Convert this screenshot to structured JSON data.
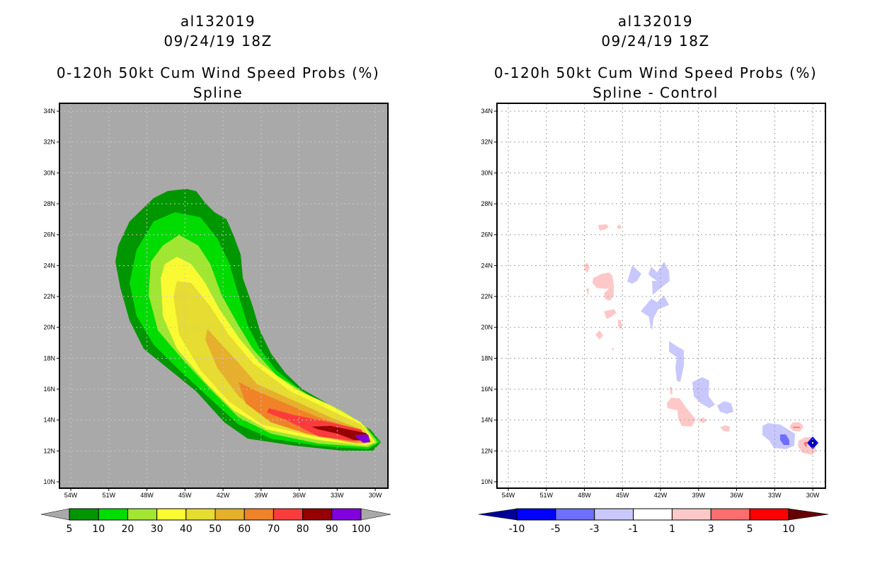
{
  "panels": [
    {
      "storm": "al132019",
      "datetime": "09/24/19 18Z",
      "title": "0-120h 50kt Cum Wind Speed Probs (%)",
      "subtitle": "Spline",
      "background": "#a9a9a9"
    },
    {
      "storm": "al132019",
      "datetime": "09/24/19 18Z",
      "title": "0-120h 50kt Cum Wind Speed Probs (%)",
      "subtitle": "Spline - Control",
      "background": "#ffffff"
    }
  ],
  "chart_data": [
    {
      "type": "heatmap",
      "title": "0-120h 50kt Cum Wind Speed Probs (%) — Spline",
      "lat_ticks": [
        "34N",
        "32N",
        "30N",
        "28N",
        "26N",
        "24N",
        "22N",
        "20N",
        "18N",
        "16N",
        "14N",
        "12N",
        "10N"
      ],
      "lat_values": [
        34,
        32,
        30,
        28,
        26,
        24,
        22,
        20,
        18,
        16,
        14,
        12,
        10
      ],
      "lon_ticks": [
        "54W",
        "51W",
        "48W",
        "45W",
        "42W",
        "39W",
        "36W",
        "33W",
        "30W"
      ],
      "lon_values": [
        -54,
        -51,
        -48,
        -45,
        -42,
        -39,
        -36,
        -33,
        -30
      ],
      "grid": true,
      "colorbar": {
        "labels": [
          "5",
          "10",
          "20",
          "30",
          "40",
          "50",
          "60",
          "70",
          "80",
          "90",
          "100"
        ],
        "colors": [
          "#009600",
          "#00dc00",
          "#a0e632",
          "#fafa32",
          "#e6dc32",
          "#e6af2d",
          "#f08228",
          "#fa3c3c",
          "#960000",
          "#8200dc"
        ],
        "extend_color": "#a9a9a9"
      },
      "max_prob_location": "near 12.5N 30.5W"
    },
    {
      "type": "heatmap",
      "title": "0-120h 50kt Cum Wind Speed Probs (%) — Spline - Control",
      "lat_ticks": [
        "34N",
        "32N",
        "30N",
        "28N",
        "26N",
        "24N",
        "22N",
        "20N",
        "18N",
        "16N",
        "14N",
        "12N",
        "10N"
      ],
      "lat_values": [
        34,
        32,
        30,
        28,
        26,
        24,
        22,
        20,
        18,
        16,
        14,
        12,
        10
      ],
      "lon_ticks": [
        "54W",
        "51W",
        "48W",
        "45W",
        "42W",
        "39W",
        "36W",
        "33W",
        "30W"
      ],
      "lon_values": [
        -54,
        -51,
        -48,
        -45,
        -42,
        -39,
        -36,
        -33,
        -30
      ],
      "grid": true,
      "colorbar": {
        "labels": [
          "-10",
          "-5",
          "-3",
          "-1",
          "1",
          "3",
          "5",
          "10"
        ],
        "colors": [
          "#0000ff",
          "#6e6eff",
          "#c8c8ff",
          "#ffffff",
          "#ffc8c8",
          "#ff6e6e",
          "#ff0000"
        ],
        "low_extend_color": "#000096",
        "high_extend_color": "#640000"
      }
    }
  ]
}
